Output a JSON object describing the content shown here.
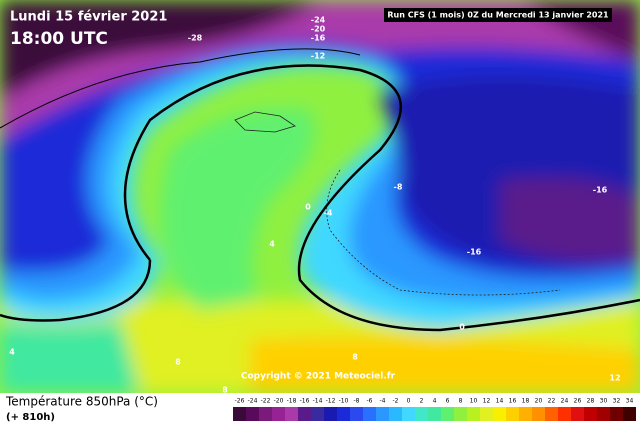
{
  "header": {
    "date": "Lundi 15 février 2021",
    "time": "18:00 UTC",
    "run": "Run CFS (1 mois) 0Z du Mercredi 13 janvier 2021"
  },
  "footer": {
    "title": "Température 850hPa (°C)",
    "lead": "(+ 810h)",
    "copyright": "Copyright © 2021 Meteociel.fr"
  },
  "contour_labels": [
    "-28",
    "-24",
    "-20",
    "-16",
    "-12",
    "0",
    "-4",
    "4",
    "-8",
    "-16",
    "-16",
    "0",
    "4",
    "8",
    "8",
    "12",
    "8"
  ],
  "scale": [
    {
      "label": "-26",
      "color": "#3a0a3a"
    },
    {
      "label": "-24",
      "color": "#5a0a5a"
    },
    {
      "label": "-22",
      "color": "#7a1a7a"
    },
    {
      "label": "-20",
      "color": "#962296"
    },
    {
      "label": "-18",
      "color": "#aa3aaa"
    },
    {
      "label": "-16",
      "color": "#5a1a8a"
    },
    {
      "label": "-14",
      "color": "#3a2aa0"
    },
    {
      "label": "-12",
      "color": "#1a1ab0"
    },
    {
      "label": "-10",
      "color": "#1a2ad8"
    },
    {
      "label": "-8",
      "color": "#2a4af0"
    },
    {
      "label": "-6",
      "color": "#2a70ff"
    },
    {
      "label": "-4",
      "color": "#2a98ff"
    },
    {
      "label": "-2",
      "color": "#2ab8ff"
    },
    {
      "label": "0",
      "color": "#40d8ff"
    },
    {
      "label": "2",
      "color": "#40e8c8"
    },
    {
      "label": "4",
      "color": "#40e8a0"
    },
    {
      "label": "6",
      "color": "#60f070"
    },
    {
      "label": "8",
      "color": "#90f040"
    },
    {
      "label": "10",
      "color": "#b8f020"
    },
    {
      "label": "12",
      "color": "#e0f020"
    },
    {
      "label": "14",
      "color": "#f8f000"
    },
    {
      "label": "16",
      "color": "#ffd000"
    },
    {
      "label": "18",
      "color": "#ffb000"
    },
    {
      "label": "20",
      "color": "#ff9000"
    },
    {
      "label": "22",
      "color": "#ff6000"
    },
    {
      "label": "24",
      "color": "#ff3000"
    },
    {
      "label": "26",
      "color": "#e01010"
    },
    {
      "label": "28",
      "color": "#c00000"
    },
    {
      "label": "30",
      "color": "#a00000"
    },
    {
      "label": "32",
      "color": "#700000"
    },
    {
      "label": "34",
      "color": "#400000"
    }
  ]
}
